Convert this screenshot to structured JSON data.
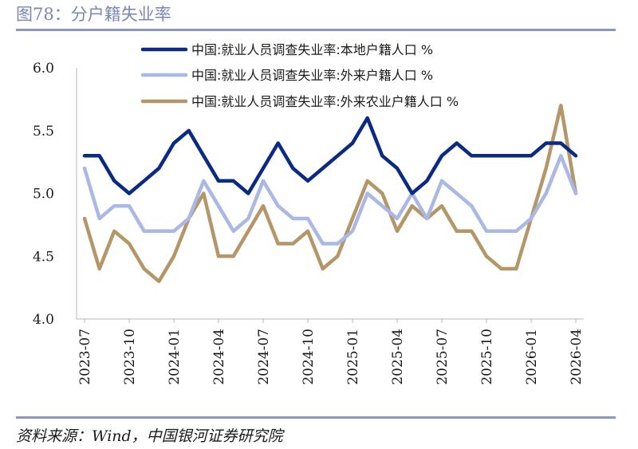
{
  "figure": {
    "title": "图78：分户籍失业率",
    "source": "资料来源：Wind，中国银河证券研究院"
  },
  "chart_data": {
    "type": "line",
    "title": "",
    "xlabel": "",
    "ylabel": "",
    "ylim": [
      4.0,
      6.0
    ],
    "y_ticks": [
      "4.0",
      "4.5",
      "5.0",
      "5.5",
      "6.0"
    ],
    "grid": false,
    "legend_position": "top",
    "x_tick_labels": [
      "2023-07",
      "2023-10",
      "2024-01",
      "2024-04",
      "2024-07",
      "2024-10",
      "2025-01",
      "2025-04",
      "2025-07",
      "2025-10",
      "2026-01",
      "2026-04"
    ],
    "categories": [
      "2023-07",
      "2023-08",
      "2023-09",
      "2023-10",
      "2023-11",
      "2023-12",
      "2024-01",
      "2024-02",
      "2024-03",
      "2024-04",
      "2024-05",
      "2024-06",
      "2024-07",
      "2024-08",
      "2024-09",
      "2024-10",
      "2024-11",
      "2024-12",
      "2025-01",
      "2025-02",
      "2025-03",
      "2025-04",
      "2025-05",
      "2025-06",
      "2025-07",
      "2025-08",
      "2025-09",
      "2025-10",
      "2025-11",
      "2025-12",
      "2026-01",
      "2026-02",
      "2026-03",
      "2026-04"
    ],
    "series": [
      {
        "name": "中国:就业人员调查失业率:本地户籍人口 %",
        "color": "#0b2a84",
        "values": [
          5.3,
          5.3,
          5.1,
          5.0,
          5.1,
          5.2,
          5.4,
          5.5,
          5.3,
          5.1,
          5.1,
          5.0,
          5.2,
          5.4,
          5.2,
          5.1,
          5.2,
          5.3,
          5.4,
          5.6,
          5.3,
          5.2,
          5.0,
          5.1,
          5.3,
          5.4,
          5.3,
          5.3,
          5.3,
          5.3,
          5.3,
          5.4,
          5.4,
          5.3
        ]
      },
      {
        "name": "中国:就业人员调查失业率:外来户籍人口 %",
        "color": "#a9b8e4",
        "values": [
          5.2,
          4.8,
          4.9,
          4.9,
          4.7,
          4.7,
          4.7,
          4.8,
          5.1,
          4.9,
          4.7,
          4.8,
          5.1,
          4.9,
          4.8,
          4.8,
          4.6,
          4.6,
          4.7,
          5.0,
          4.9,
          4.8,
          5.0,
          4.8,
          5.1,
          5.0,
          4.9,
          4.7,
          4.7,
          4.7,
          4.8,
          5.0,
          5.3,
          5.0
        ]
      },
      {
        "name": "中国:就业人员调查失业率:外来农业户籍人口 %",
        "color": "#b59668",
        "values": [
          4.8,
          4.4,
          4.7,
          4.6,
          4.4,
          4.3,
          4.5,
          4.8,
          5.0,
          4.5,
          4.5,
          4.7,
          4.9,
          4.6,
          4.6,
          4.7,
          4.4,
          4.5,
          4.8,
          5.1,
          5.0,
          4.7,
          4.9,
          4.8,
          4.9,
          4.7,
          4.7,
          4.5,
          4.4,
          4.4,
          4.8,
          5.2,
          5.7,
          5.0
        ]
      }
    ]
  }
}
